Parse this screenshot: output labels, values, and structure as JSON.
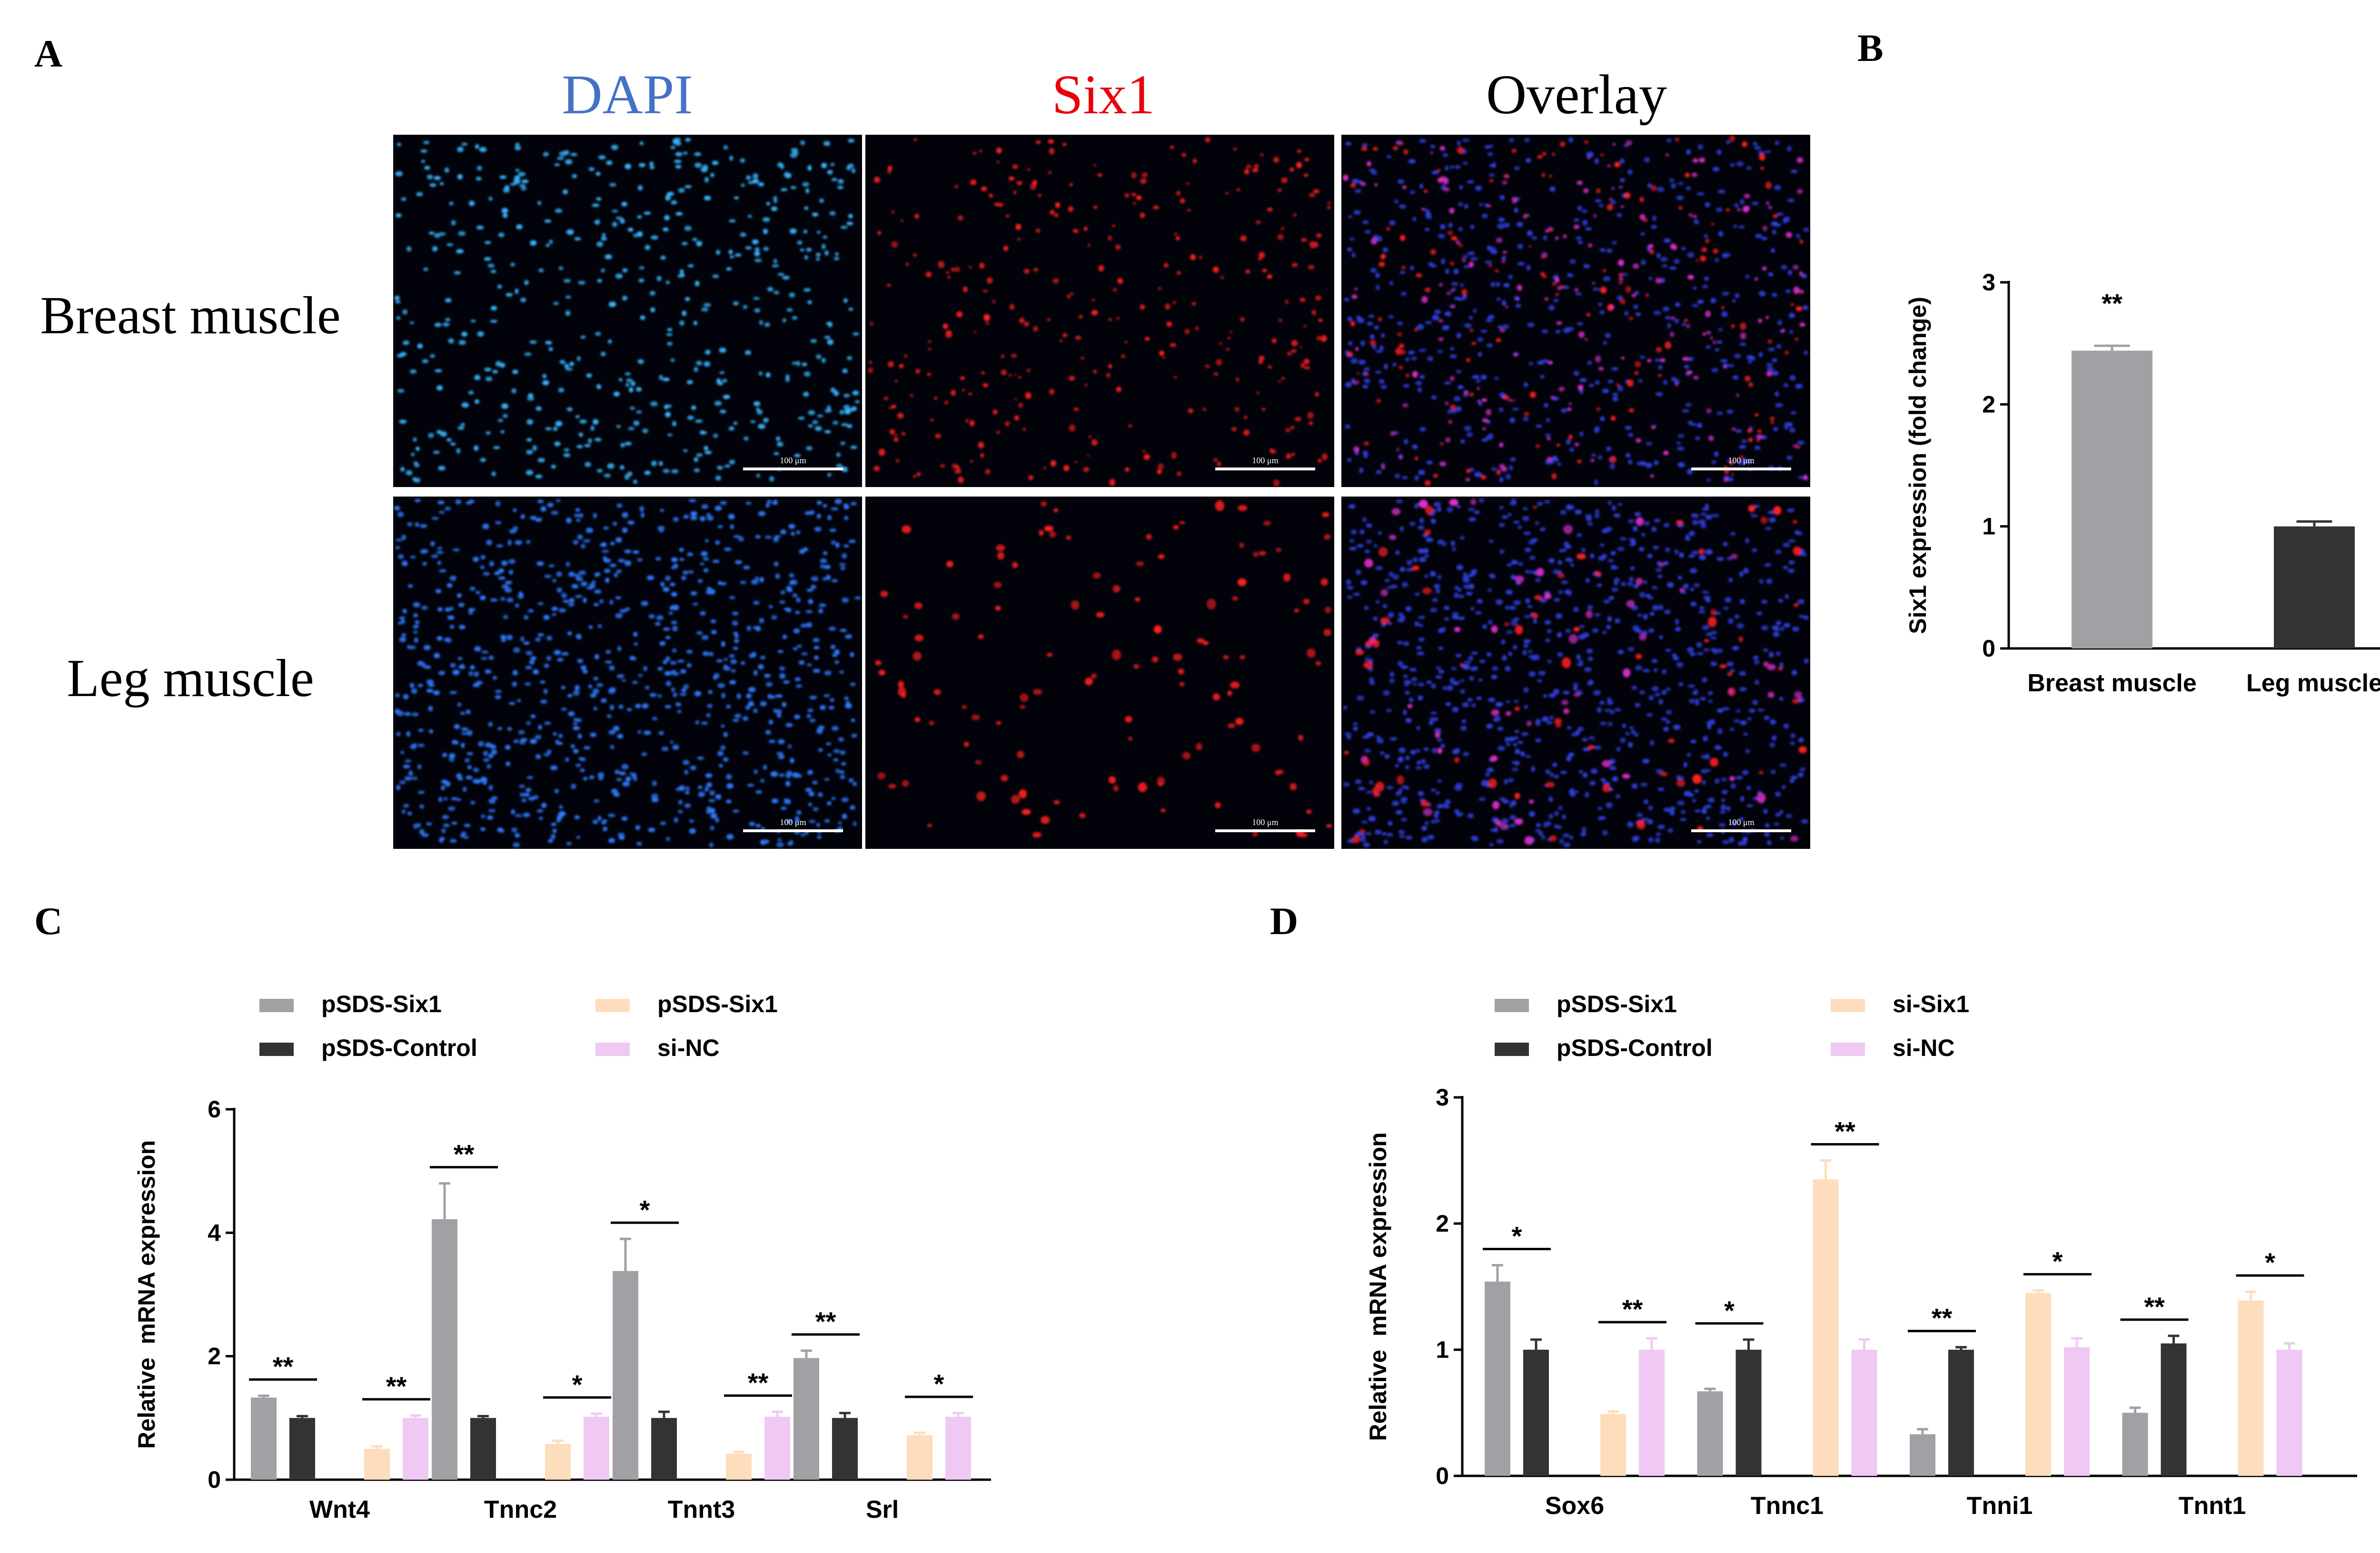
{
  "panels": {
    "A": {
      "letter": "A",
      "columns": [
        {
          "label": "DAPI",
          "color": "#4472C4"
        },
        {
          "label": "Six1",
          "color": "#E8000B"
        },
        {
          "label": "Overlay",
          "color": "#000000"
        }
      ],
      "rows": [
        "Breast muscle",
        "Leg muscle"
      ],
      "scale_bar_label": "100 μm"
    },
    "B": {
      "letter": "B"
    },
    "C": {
      "letter": "C"
    },
    "D": {
      "letter": "D"
    }
  },
  "colors": {
    "grey": "#A0A0A5",
    "dark": "#333333",
    "peach": "#FDDDBB",
    "lavender": "#EFC9F3",
    "dapi": "#2F7BFF",
    "six1": "#FF2020",
    "overlay_blue": "#3040E0",
    "overlay_mag": "#E030D0"
  },
  "chart_data": [
    {
      "panel": "B",
      "type": "bar",
      "categories": [
        "Breast muscle",
        "Leg muscle"
      ],
      "values": [
        2.44,
        1.0
      ],
      "errors": [
        0.04,
        0.04
      ],
      "bar_colors": [
        "#A0A0A5",
        "#333333"
      ],
      "significance": [
        "**",
        ""
      ],
      "ylabel": "Six1 expression (fold change)",
      "ylim": [
        0,
        3
      ],
      "yticks": [
        0,
        1,
        2,
        3
      ],
      "legend": "none"
    },
    {
      "panel": "C",
      "type": "bar",
      "ylabel": "Relative  mRNA expression",
      "ylim": [
        0,
        6
      ],
      "yticks": [
        0,
        2,
        4,
        6
      ],
      "legend": "top-left",
      "legend_items": [
        {
          "name": "pSDS-Six1",
          "color": "#A0A0A5"
        },
        {
          "name": "pSDS-Control",
          "color": "#333333"
        },
        {
          "name": "pSDS-Six1",
          "color": "#FDDDBB"
        },
        {
          "name": "si-NC",
          "color": "#EFC9F3"
        }
      ],
      "categories": [
        "Wnt4",
        "Tnnc2",
        "Tnnt3",
        "Srl"
      ],
      "groups": [
        {
          "bars": [
            {
              "value": 1.33,
              "error": 0.03,
              "color": "#A0A0A5"
            },
            {
              "value": 1.0,
              "error": 0.03,
              "color": "#333333"
            },
            {
              "value": 0.5,
              "error": 0.04,
              "color": "#FDDDBB"
            },
            {
              "value": 1.0,
              "error": 0.04,
              "color": "#EFC9F3"
            }
          ],
          "sig": [
            "**",
            "**"
          ]
        },
        {
          "bars": [
            {
              "value": 4.22,
              "error": 0.58,
              "color": "#A0A0A5"
            },
            {
              "value": 1.0,
              "error": 0.03,
              "color": "#333333"
            },
            {
              "value": 0.58,
              "error": 0.05,
              "color": "#FDDDBB"
            },
            {
              "value": 1.02,
              "error": 0.05,
              "color": "#EFC9F3"
            }
          ],
          "sig": [
            "**",
            "*"
          ]
        },
        {
          "bars": [
            {
              "value": 3.38,
              "error": 0.52,
              "color": "#A0A0A5"
            },
            {
              "value": 1.0,
              "error": 0.1,
              "color": "#333333"
            },
            {
              "value": 0.42,
              "error": 0.03,
              "color": "#FDDDBB"
            },
            {
              "value": 1.02,
              "error": 0.08,
              "color": "#EFC9F3"
            }
          ],
          "sig": [
            "*",
            "**"
          ]
        },
        {
          "bars": [
            {
              "value": 1.97,
              "error": 0.12,
              "color": "#A0A0A5"
            },
            {
              "value": 1.0,
              "error": 0.08,
              "color": "#333333"
            },
            {
              "value": 0.72,
              "error": 0.04,
              "color": "#FDDDBB"
            },
            {
              "value": 1.02,
              "error": 0.06,
              "color": "#EFC9F3"
            }
          ],
          "sig": [
            "**",
            "*"
          ]
        }
      ]
    },
    {
      "panel": "D",
      "type": "bar",
      "ylabel": "Relative  mRNA expression",
      "ylim": [
        0,
        3
      ],
      "yticks": [
        0,
        1,
        2,
        3
      ],
      "legend": "top-left",
      "legend_items": [
        {
          "name": "pSDS-Six1",
          "color": "#A0A0A5"
        },
        {
          "name": "pSDS-Control",
          "color": "#333333"
        },
        {
          "name": "si-Six1",
          "color": "#FDDDBB"
        },
        {
          "name": "si-NC",
          "color": "#EFC9F3"
        }
      ],
      "categories": [
        "Sox6",
        "Tnnc1",
        "Tnni1",
        "Tnnt1"
      ],
      "groups": [
        {
          "bars": [
            {
              "value": 1.54,
              "error": 0.13,
              "color": "#A0A0A5"
            },
            {
              "value": 1.0,
              "error": 0.08,
              "color": "#333333"
            },
            {
              "value": 0.49,
              "error": 0.02,
              "color": "#FDDDBB"
            },
            {
              "value": 1.0,
              "error": 0.09,
              "color": "#EFC9F3"
            }
          ],
          "sig": [
            "*",
            "**"
          ]
        },
        {
          "bars": [
            {
              "value": 0.67,
              "error": 0.02,
              "color": "#A0A0A5"
            },
            {
              "value": 1.0,
              "error": 0.08,
              "color": "#333333"
            },
            {
              "value": 2.35,
              "error": 0.15,
              "color": "#FDDDBB"
            },
            {
              "value": 1.0,
              "error": 0.08,
              "color": "#EFC9F3"
            }
          ],
          "sig": [
            "*",
            "**"
          ]
        },
        {
          "bars": [
            {
              "value": 0.33,
              "error": 0.04,
              "color": "#A0A0A5"
            },
            {
              "value": 1.0,
              "error": 0.02,
              "color": "#333333"
            },
            {
              "value": 1.45,
              "error": 0.02,
              "color": "#FDDDBB"
            },
            {
              "value": 1.02,
              "error": 0.07,
              "color": "#EFC9F3"
            }
          ],
          "sig": [
            "**",
            "*"
          ]
        },
        {
          "bars": [
            {
              "value": 0.5,
              "error": 0.04,
              "color": "#A0A0A5"
            },
            {
              "value": 1.05,
              "error": 0.06,
              "color": "#333333"
            },
            {
              "value": 1.39,
              "error": 0.07,
              "color": "#FDDDBB"
            },
            {
              "value": 1.0,
              "error": 0.05,
              "color": "#EFC9F3"
            }
          ],
          "sig": [
            "**",
            "*"
          ]
        }
      ]
    }
  ]
}
